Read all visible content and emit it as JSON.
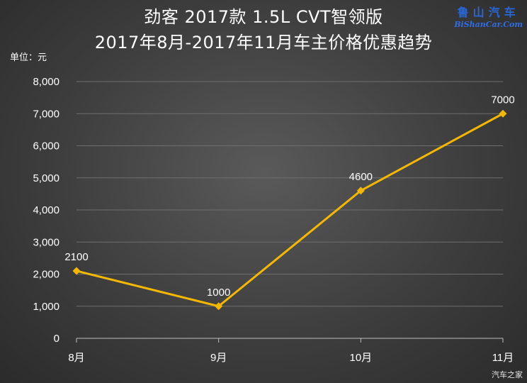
{
  "title_line1": "劲客 2017款 1.5L CVT智领版",
  "title_line2": "2017年8月-2017年11月车主价格优惠趋势",
  "unit_label": "单位：元",
  "watermark": {
    "cn": "鲁山汽车",
    "url": "BiShanCar.Com"
  },
  "watermark_bottom": "汽车之家",
  "chart_data": {
    "type": "line",
    "title": "劲客 2017款 1.5L CVT智领版 2017年8月-2017年11月车主价格优惠趋势",
    "xlabel": "",
    "ylabel": "单位：元",
    "categories": [
      "8月",
      "9月",
      "10月",
      "11月"
    ],
    "series": [
      {
        "values": [
          2100,
          1000,
          4600,
          7000
        ]
      }
    ],
    "data_labels": [
      "2100",
      "1000",
      "4600",
      "7000"
    ],
    "ylim": [
      0,
      8000
    ],
    "yticks": [
      0,
      1000,
      2000,
      3000,
      4000,
      5000,
      6000,
      7000,
      8000
    ],
    "ytick_labels": [
      "0",
      "1,000",
      "2,000",
      "3,000",
      "4,000",
      "5,000",
      "6,000",
      "7,000",
      "8,000"
    ],
    "grid": true,
    "legend": "none",
    "line_color": "#f5b800",
    "grid_color": "#6e6e6e",
    "axis_color": "#bfbfbf"
  }
}
